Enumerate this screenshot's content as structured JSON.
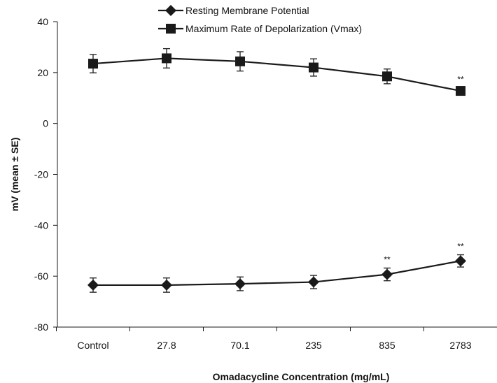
{
  "chart_data": {
    "type": "line",
    "categories": [
      "Control",
      "27.8",
      "70.1",
      "235",
      "835",
      "2783"
    ],
    "series": [
      {
        "name": "Resting Membrane Potential",
        "marker": "diamond",
        "values": [
          -63.5,
          -63.5,
          -63.0,
          -62.3,
          -59.3,
          -54.0
        ],
        "error": [
          2.8,
          2.8,
          2.7,
          2.6,
          2.5,
          2.4
        ]
      },
      {
        "name": "Maximum Rate of Depolarization (Vmax)",
        "marker": "square",
        "values": [
          23.5,
          25.6,
          24.4,
          22.0,
          18.5,
          12.8
        ],
        "error": [
          3.6,
          3.8,
          3.8,
          3.4,
          2.9,
          1.3
        ]
      }
    ],
    "annotations": [
      {
        "series": 0,
        "index": 4,
        "text": "**"
      },
      {
        "series": 0,
        "index": 5,
        "text": "**"
      },
      {
        "series": 1,
        "index": 5,
        "text": "**"
      }
    ],
    "ylim": [
      -80,
      40
    ],
    "yticks": [
      40,
      20,
      0,
      -20,
      -40,
      -60,
      -80
    ],
    "ylabel": "mV (mean ± SE)",
    "xlabel": "Omadacycline Concentration (mg/mL)",
    "legend_position": "top-center",
    "line_color": "#1a1a1a"
  }
}
